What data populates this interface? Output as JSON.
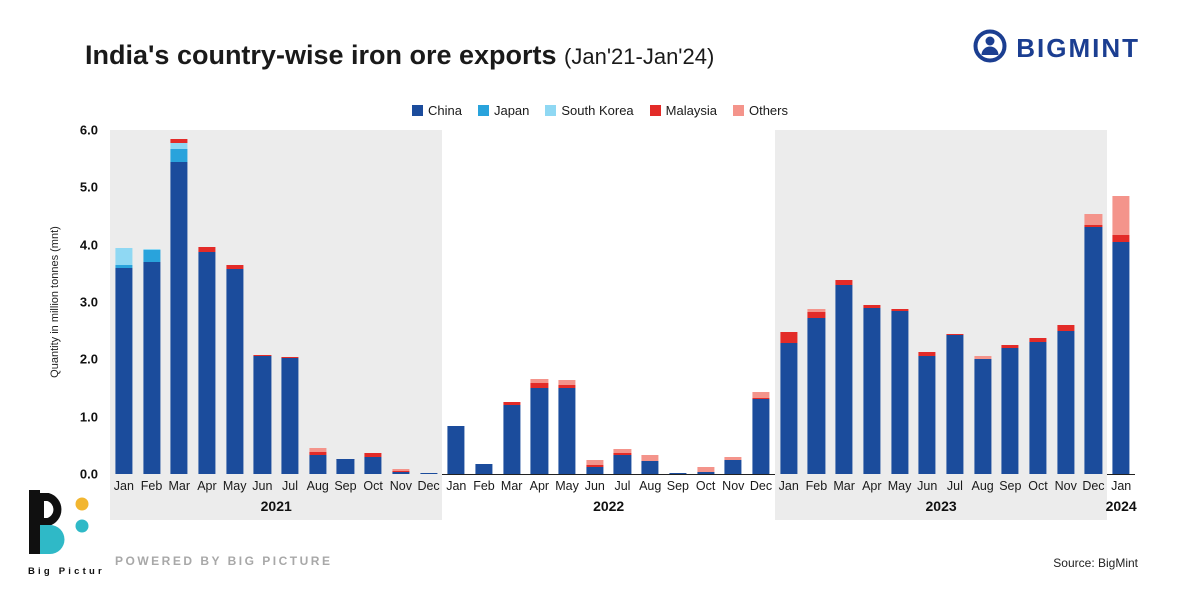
{
  "header": {
    "title_bold": "India's country-wise iron ore exports",
    "title_suffix": "(Jan'21-Jan'24)",
    "brand": "BIGMINT"
  },
  "footer": {
    "logo_text": "Big Picture",
    "powered_by": "POWERED BY BIG PICTURE",
    "source": "Source: BigMint"
  },
  "chart_data": {
    "type": "bar",
    "stacked": true,
    "title": "India's country-wise iron ore exports (Jan'21-Jan'24)",
    "ylabel": "Quantity in million tonnes (mnt)",
    "ylim": [
      0,
      6
    ],
    "yticks": [
      0.0,
      1.0,
      2.0,
      3.0,
      4.0,
      5.0,
      6.0
    ],
    "grid": false,
    "legend_position": "top",
    "categories": [
      "Jan",
      "Feb",
      "Mar",
      "Apr",
      "May",
      "Jun",
      "Jul",
      "Aug",
      "Sep",
      "Oct",
      "Nov",
      "Dec",
      "Jan",
      "Feb",
      "Mar",
      "Apr",
      "May",
      "Jun",
      "Jul",
      "Aug",
      "Sep",
      "Oct",
      "Nov",
      "Dec",
      "Jan",
      "Feb",
      "Mar",
      "Apr",
      "May",
      "Jun",
      "Jul",
      "Aug",
      "Sep",
      "Oct",
      "Nov",
      "Dec",
      "Jan"
    ],
    "year_groups": [
      {
        "label": "2021",
        "start": 0,
        "count": 12,
        "shaded": true
      },
      {
        "label": "2022",
        "start": 12,
        "count": 12,
        "shaded": false
      },
      {
        "label": "2023",
        "start": 24,
        "count": 12,
        "shaded": true
      },
      {
        "label": "2024",
        "start": 36,
        "count": 1,
        "shaded": false
      }
    ],
    "series": [
      {
        "name": "China",
        "color": "#1b4c9c",
        "values": [
          3.6,
          3.7,
          5.45,
          3.88,
          3.58,
          2.05,
          2.02,
          0.33,
          0.26,
          0.3,
          0.04,
          0.02,
          0.84,
          0.17,
          1.2,
          1.5,
          1.5,
          0.13,
          0.33,
          0.22,
          0.01,
          0.04,
          0.24,
          1.3,
          2.28,
          2.72,
          3.3,
          2.9,
          2.85,
          2.05,
          2.42,
          2.0,
          2.2,
          2.3,
          2.5,
          4.3,
          4.05
        ]
      },
      {
        "name": "Japan",
        "color": "#29a3dc",
        "values": [
          0.05,
          0.2,
          0.22,
          0,
          0,
          0,
          0,
          0,
          0,
          0,
          0,
          0,
          0,
          0,
          0,
          0,
          0,
          0,
          0,
          0,
          0,
          0,
          0,
          0,
          0,
          0,
          0,
          0,
          0,
          0,
          0,
          0,
          0,
          0,
          0,
          0,
          0
        ]
      },
      {
        "name": "South Korea",
        "color": "#8fd8f3",
        "values": [
          0.3,
          0.02,
          0.1,
          0,
          0,
          0,
          0,
          0,
          0,
          0,
          0,
          0,
          0,
          0,
          0,
          0,
          0,
          0,
          0,
          0,
          0,
          0,
          0,
          0,
          0,
          0,
          0,
          0,
          0,
          0,
          0,
          0,
          0,
          0,
          0,
          0,
          0
        ]
      },
      {
        "name": "Malaysia",
        "color": "#e32b28",
        "values": [
          0,
          0,
          0.08,
          0.08,
          0.06,
          0.03,
          0.02,
          0.05,
          0.01,
          0.06,
          0.01,
          0,
          0,
          0,
          0.05,
          0.08,
          0.06,
          0.03,
          0.03,
          0,
          0,
          0,
          0,
          0.03,
          0.2,
          0.1,
          0.08,
          0.05,
          0.03,
          0.08,
          0.02,
          0,
          0.05,
          0.08,
          0.1,
          0.05,
          0.12
        ]
      },
      {
        "name": "Others",
        "color": "#f4948b",
        "values": [
          0,
          0,
          0,
          0,
          0,
          0,
          0,
          0.07,
          0,
          0,
          0.03,
          0,
          0,
          0,
          0,
          0.08,
          0.08,
          0.08,
          0.08,
          0.12,
          0,
          0.08,
          0.05,
          0.1,
          0,
          0.06,
          0,
          0,
          0,
          0,
          0,
          0.05,
          0,
          0,
          0,
          0.18,
          0.68
        ]
      }
    ]
  }
}
